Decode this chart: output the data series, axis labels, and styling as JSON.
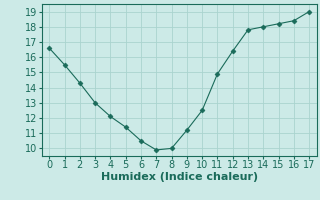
{
  "xlabel": "Humidex (Indice chaleur)",
  "x": [
    0,
    1,
    2,
    3,
    4,
    5,
    6,
    7,
    8,
    9,
    10,
    11,
    12,
    13,
    14,
    15,
    16,
    17
  ],
  "y": [
    16.6,
    15.5,
    14.3,
    13.0,
    12.1,
    11.4,
    10.5,
    9.9,
    10.0,
    11.2,
    12.5,
    14.9,
    16.4,
    17.8,
    18.0,
    18.2,
    18.4,
    19.0
  ],
  "line_color": "#1a6b5a",
  "marker": "D",
  "marker_size": 2.5,
  "bg_color": "#cceae7",
  "grid_color": "#aad4cf",
  "xlim": [
    -0.5,
    17.5
  ],
  "ylim": [
    9.5,
    19.5
  ],
  "xticks": [
    0,
    1,
    2,
    3,
    4,
    5,
    6,
    7,
    8,
    9,
    10,
    11,
    12,
    13,
    14,
    15,
    16,
    17
  ],
  "yticks": [
    10,
    11,
    12,
    13,
    14,
    15,
    16,
    17,
    18,
    19
  ],
  "tick_fontsize": 7,
  "label_fontsize": 8
}
